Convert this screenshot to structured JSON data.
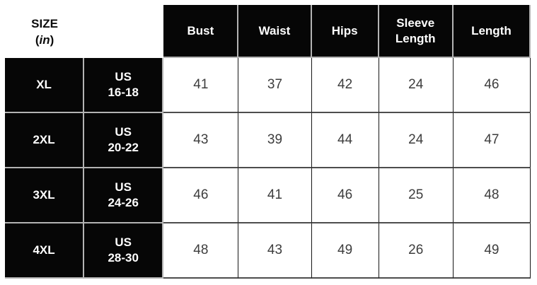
{
  "page": {
    "background": "#ffffff"
  },
  "table": {
    "unit_label": {
      "title": "SIZE",
      "paren_open": "(",
      "unit": "in",
      "paren_close": ")"
    },
    "columns": [
      "Bust",
      "Waist",
      "Hips",
      "Sleeve Length",
      "Length"
    ],
    "rows": [
      {
        "size": "XL",
        "us_line1": "US",
        "us_line2": "16-18",
        "values": [
          "41",
          "37",
          "42",
          "24",
          "46"
        ]
      },
      {
        "size": "2XL",
        "us_line1": "US",
        "us_line2": "20-22",
        "values": [
          "43",
          "39",
          "44",
          "24",
          "47"
        ]
      },
      {
        "size": "3XL",
        "us_line1": "US",
        "us_line2": "24-26",
        "values": [
          "46",
          "41",
          "46",
          "25",
          "48"
        ]
      },
      {
        "size": "4XL",
        "us_line1": "US",
        "us_line2": "28-30",
        "values": [
          "48",
          "43",
          "49",
          "26",
          "49"
        ]
      }
    ],
    "colors": {
      "cell_black": "#060606",
      "light_divider": "#b3b3b3",
      "dark_border_horizontal": "#4d4d4d",
      "dark_border_vertical": "#161616",
      "value_text": "#3d3d3d"
    }
  }
}
